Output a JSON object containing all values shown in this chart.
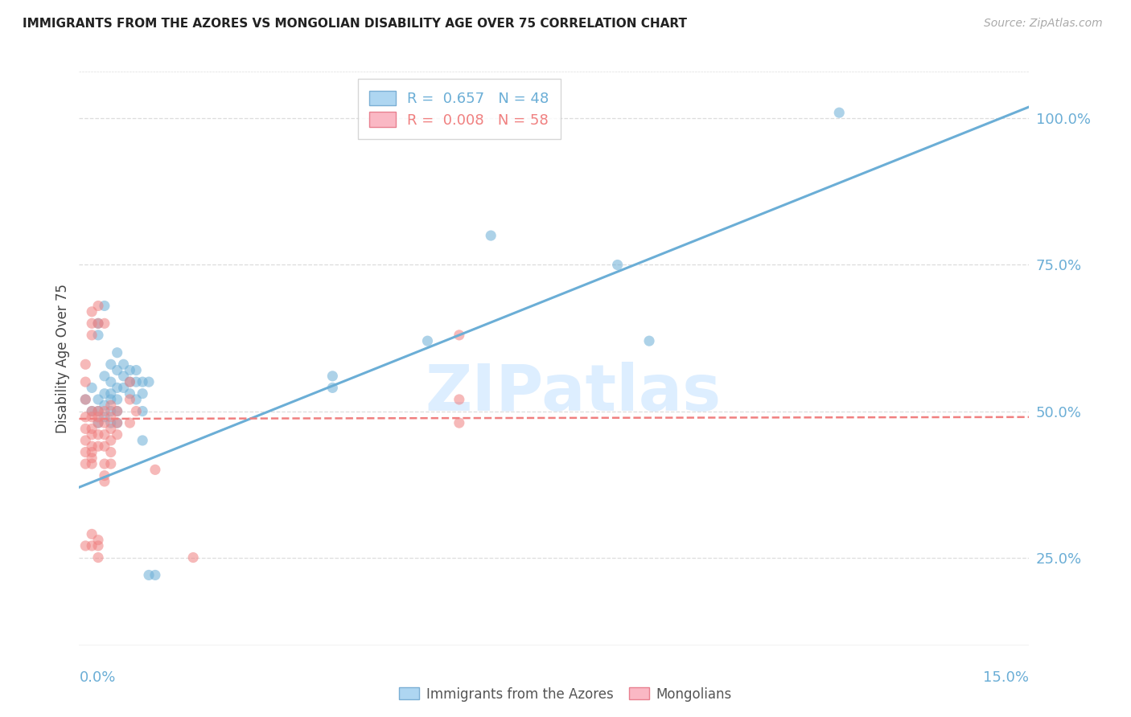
{
  "title": "IMMIGRANTS FROM THE AZORES VS MONGOLIAN DISABILITY AGE OVER 75 CORRELATION CHART",
  "source": "Source: ZipAtlas.com",
  "ylabel": "Disability Age Over 75",
  "y_ticks": [
    0.25,
    0.5,
    0.75,
    1.0
  ],
  "y_tick_labels": [
    "25.0%",
    "50.0%",
    "75.0%",
    "100.0%"
  ],
  "x_range": [
    0.0,
    0.15
  ],
  "y_range": [
    0.1,
    1.08
  ],
  "legend_entries": [
    {
      "label": "R =  0.657   N = 48",
      "color": "#6BAED6"
    },
    {
      "label": "R =  0.008   N = 58",
      "color": "#F08080"
    }
  ],
  "legend_labels_bottom": [
    "Immigrants from the Azores",
    "Mongolians"
  ],
  "watermark": "ZIPatlas",
  "blue_color": "#6BAED6",
  "pink_color": "#F08080",
  "blue_scatter": [
    [
      0.001,
      0.52
    ],
    [
      0.002,
      0.5
    ],
    [
      0.002,
      0.54
    ],
    [
      0.003,
      0.65
    ],
    [
      0.003,
      0.63
    ],
    [
      0.003,
      0.52
    ],
    [
      0.003,
      0.5
    ],
    [
      0.003,
      0.48
    ],
    [
      0.004,
      0.68
    ],
    [
      0.004,
      0.56
    ],
    [
      0.004,
      0.53
    ],
    [
      0.004,
      0.51
    ],
    [
      0.004,
      0.49
    ],
    [
      0.005,
      0.58
    ],
    [
      0.005,
      0.55
    ],
    [
      0.005,
      0.53
    ],
    [
      0.005,
      0.52
    ],
    [
      0.005,
      0.5
    ],
    [
      0.005,
      0.48
    ],
    [
      0.006,
      0.6
    ],
    [
      0.006,
      0.57
    ],
    [
      0.006,
      0.54
    ],
    [
      0.006,
      0.52
    ],
    [
      0.006,
      0.5
    ],
    [
      0.006,
      0.48
    ],
    [
      0.007,
      0.58
    ],
    [
      0.007,
      0.56
    ],
    [
      0.007,
      0.54
    ],
    [
      0.008,
      0.57
    ],
    [
      0.008,
      0.55
    ],
    [
      0.008,
      0.53
    ],
    [
      0.009,
      0.57
    ],
    [
      0.009,
      0.55
    ],
    [
      0.009,
      0.52
    ],
    [
      0.01,
      0.55
    ],
    [
      0.01,
      0.53
    ],
    [
      0.01,
      0.5
    ],
    [
      0.01,
      0.45
    ],
    [
      0.011,
      0.55
    ],
    [
      0.011,
      0.22
    ],
    [
      0.012,
      0.22
    ],
    [
      0.04,
      0.56
    ],
    [
      0.04,
      0.54
    ],
    [
      0.055,
      0.62
    ],
    [
      0.065,
      0.8
    ],
    [
      0.085,
      0.75
    ],
    [
      0.09,
      0.62
    ],
    [
      0.12,
      1.01
    ]
  ],
  "pink_scatter": [
    [
      0.001,
      0.58
    ],
    [
      0.001,
      0.55
    ],
    [
      0.001,
      0.52
    ],
    [
      0.001,
      0.49
    ],
    [
      0.001,
      0.47
    ],
    [
      0.001,
      0.45
    ],
    [
      0.001,
      0.43
    ],
    [
      0.001,
      0.41
    ],
    [
      0.001,
      0.27
    ],
    [
      0.002,
      0.67
    ],
    [
      0.002,
      0.65
    ],
    [
      0.002,
      0.63
    ],
    [
      0.002,
      0.5
    ],
    [
      0.002,
      0.49
    ],
    [
      0.002,
      0.47
    ],
    [
      0.002,
      0.46
    ],
    [
      0.002,
      0.44
    ],
    [
      0.002,
      0.43
    ],
    [
      0.002,
      0.42
    ],
    [
      0.002,
      0.41
    ],
    [
      0.002,
      0.29
    ],
    [
      0.002,
      0.27
    ],
    [
      0.003,
      0.68
    ],
    [
      0.003,
      0.65
    ],
    [
      0.003,
      0.5
    ],
    [
      0.003,
      0.49
    ],
    [
      0.003,
      0.48
    ],
    [
      0.003,
      0.46
    ],
    [
      0.003,
      0.44
    ],
    [
      0.003,
      0.28
    ],
    [
      0.003,
      0.27
    ],
    [
      0.003,
      0.25
    ],
    [
      0.004,
      0.65
    ],
    [
      0.004,
      0.5
    ],
    [
      0.004,
      0.48
    ],
    [
      0.004,
      0.46
    ],
    [
      0.004,
      0.44
    ],
    [
      0.004,
      0.41
    ],
    [
      0.004,
      0.39
    ],
    [
      0.004,
      0.38
    ],
    [
      0.005,
      0.51
    ],
    [
      0.005,
      0.49
    ],
    [
      0.005,
      0.47
    ],
    [
      0.005,
      0.45
    ],
    [
      0.005,
      0.43
    ],
    [
      0.005,
      0.41
    ],
    [
      0.006,
      0.5
    ],
    [
      0.006,
      0.48
    ],
    [
      0.006,
      0.46
    ],
    [
      0.008,
      0.55
    ],
    [
      0.008,
      0.52
    ],
    [
      0.008,
      0.48
    ],
    [
      0.009,
      0.5
    ],
    [
      0.012,
      0.4
    ],
    [
      0.018,
      0.25
    ],
    [
      0.06,
      0.63
    ],
    [
      0.06,
      0.52
    ],
    [
      0.06,
      0.48
    ]
  ],
  "blue_line_x": [
    0.0,
    0.15
  ],
  "blue_line_y": [
    0.37,
    1.02
  ],
  "pink_line_x": [
    0.0,
    0.15
  ],
  "pink_line_y": [
    0.487,
    0.49
  ],
  "grid_color": "#DDDDDD",
  "spine_color": "#BBBBBB"
}
